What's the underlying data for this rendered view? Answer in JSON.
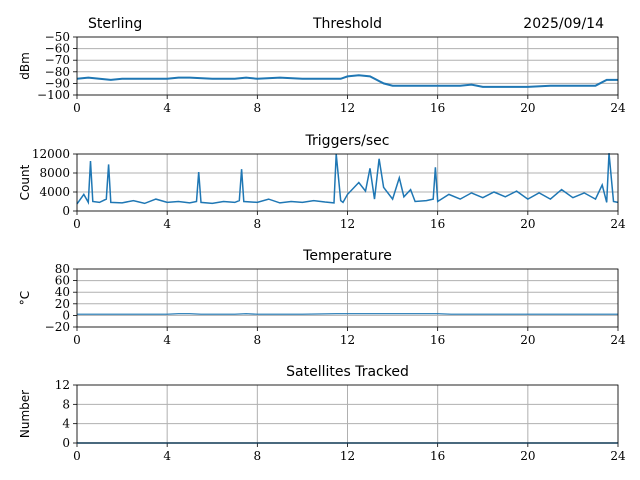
{
  "header": {
    "station": "Sterling",
    "date": "2025/09/14"
  },
  "chart_data": [
    {
      "type": "line",
      "title": "Threshold",
      "ylabel": "dBm",
      "xlabel": "",
      "xlim": [
        0,
        24
      ],
      "ylim": [
        -100,
        -50
      ],
      "xticks": [
        "0",
        "4",
        "8",
        "12",
        "16",
        "20",
        "24"
      ],
      "yticks": [
        "−50",
        "−60",
        "−70",
        "−80",
        "−90",
        "−100"
      ],
      "ytick_values": [
        -50,
        -60,
        -70,
        -80,
        -90,
        -100
      ],
      "series": [
        {
          "name": "threshold",
          "x": [
            0,
            0.5,
            1,
            1.5,
            2,
            3,
            4,
            4.5,
            5,
            6,
            7,
            7.5,
            8,
            9,
            10,
            11,
            11.7,
            12,
            12.5,
            13,
            13.3,
            13.6,
            14,
            14.5,
            15,
            16,
            17,
            17.5,
            18,
            19,
            20,
            21,
            22,
            23,
            23.5,
            24
          ],
          "y": [
            -86,
            -85,
            -86,
            -87,
            -86,
            -86,
            -86,
            -85,
            -85,
            -86,
            -86,
            -85,
            -86,
            -85,
            -86,
            -86,
            -86,
            -84,
            -83,
            -84,
            -87,
            -90,
            -92,
            -92,
            -92,
            -92,
            -92,
            -91,
            -93,
            -93,
            -93,
            -92,
            -92,
            -92,
            -87,
            -87
          ]
        }
      ]
    },
    {
      "type": "line",
      "title": "Triggers/sec",
      "ylabel": "Count",
      "xlabel": "",
      "xlim": [
        0,
        24
      ],
      "ylim": [
        0,
        12000
      ],
      "xticks": [
        "0",
        "4",
        "8",
        "12",
        "16",
        "20",
        "24"
      ],
      "yticks": [
        "0",
        "4000",
        "8000",
        "12000"
      ],
      "ytick_values": [
        0,
        4000,
        8000,
        12000
      ],
      "series": [
        {
          "name": "triggers",
          "x": [
            0,
            0.3,
            0.5,
            0.6,
            0.7,
            1.0,
            1.3,
            1.4,
            1.5,
            2.0,
            2.5,
            3.0,
            3.5,
            4.0,
            4.5,
            5.0,
            5.3,
            5.4,
            5.5,
            6.0,
            6.5,
            7.0,
            7.2,
            7.3,
            7.4,
            8.0,
            8.5,
            9.0,
            9.5,
            10.0,
            10.5,
            11.0,
            11.4,
            11.5,
            11.7,
            11.8,
            12.0,
            12.5,
            12.8,
            13.0,
            13.2,
            13.4,
            13.6,
            14.0,
            14.3,
            14.5,
            14.8,
            15.0,
            15.5,
            15.8,
            15.9,
            16.0,
            16.5,
            17.0,
            17.5,
            18.0,
            18.5,
            19.0,
            19.5,
            20.0,
            20.5,
            21.0,
            21.5,
            22.0,
            22.5,
            23.0,
            23.3,
            23.5,
            23.6,
            23.8,
            24.0
          ],
          "y": [
            1500,
            3500,
            1800,
            10500,
            2000,
            1800,
            2500,
            9800,
            1800,
            1700,
            2200,
            1600,
            2500,
            1800,
            2000,
            1700,
            2000,
            8200,
            1800,
            1600,
            2000,
            1800,
            2200,
            8800,
            2000,
            1800,
            2500,
            1700,
            2000,
            1800,
            2200,
            1900,
            1700,
            12000,
            2200,
            1800,
            3500,
            6000,
            4200,
            9000,
            2500,
            11000,
            5000,
            2500,
            7000,
            3000,
            4500,
            2000,
            2200,
            2500,
            9200,
            2000,
            3500,
            2500,
            3800,
            2800,
            4000,
            3000,
            4200,
            2500,
            3800,
            2500,
            4500,
            2800,
            3800,
            2500,
            5500,
            1800,
            12200,
            2000,
            1800
          ]
        }
      ]
    },
    {
      "type": "line",
      "title": "Temperature",
      "ylabel": "°C",
      "xlabel": "",
      "xlim": [
        0,
        24
      ],
      "ylim": [
        -20,
        80
      ],
      "xticks": [
        "0",
        "4",
        "8",
        "12",
        "16",
        "20",
        "24"
      ],
      "yticks": [
        "80",
        "60",
        "40",
        "20",
        "0",
        "−20"
      ],
      "ytick_values": [
        80,
        60,
        40,
        20,
        0,
        -20
      ],
      "series": [
        {
          "name": "temperature",
          "x": [
            0,
            4,
            4.5,
            5,
            5.5,
            7,
            7.5,
            8,
            10,
            11.5,
            12,
            13,
            16,
            16.6,
            17,
            20,
            24
          ],
          "y": [
            2,
            2,
            3,
            3,
            2,
            2,
            3,
            2,
            2,
            3,
            3,
            3,
            3,
            2,
            2,
            2,
            2
          ]
        }
      ]
    },
    {
      "type": "line",
      "title": "Satellites Tracked",
      "ylabel": "Number",
      "xlabel": "",
      "xlim": [
        0,
        24
      ],
      "ylim": [
        0,
        12
      ],
      "xticks": [
        "0",
        "4",
        "8",
        "12",
        "16",
        "20",
        "24"
      ],
      "yticks": [
        "12",
        "8",
        "4",
        "0"
      ],
      "ytick_values": [
        12,
        8,
        4,
        0
      ],
      "series": [
        {
          "name": "satellites",
          "x": [
            0,
            24
          ],
          "y": [
            0,
            0
          ]
        }
      ]
    }
  ]
}
